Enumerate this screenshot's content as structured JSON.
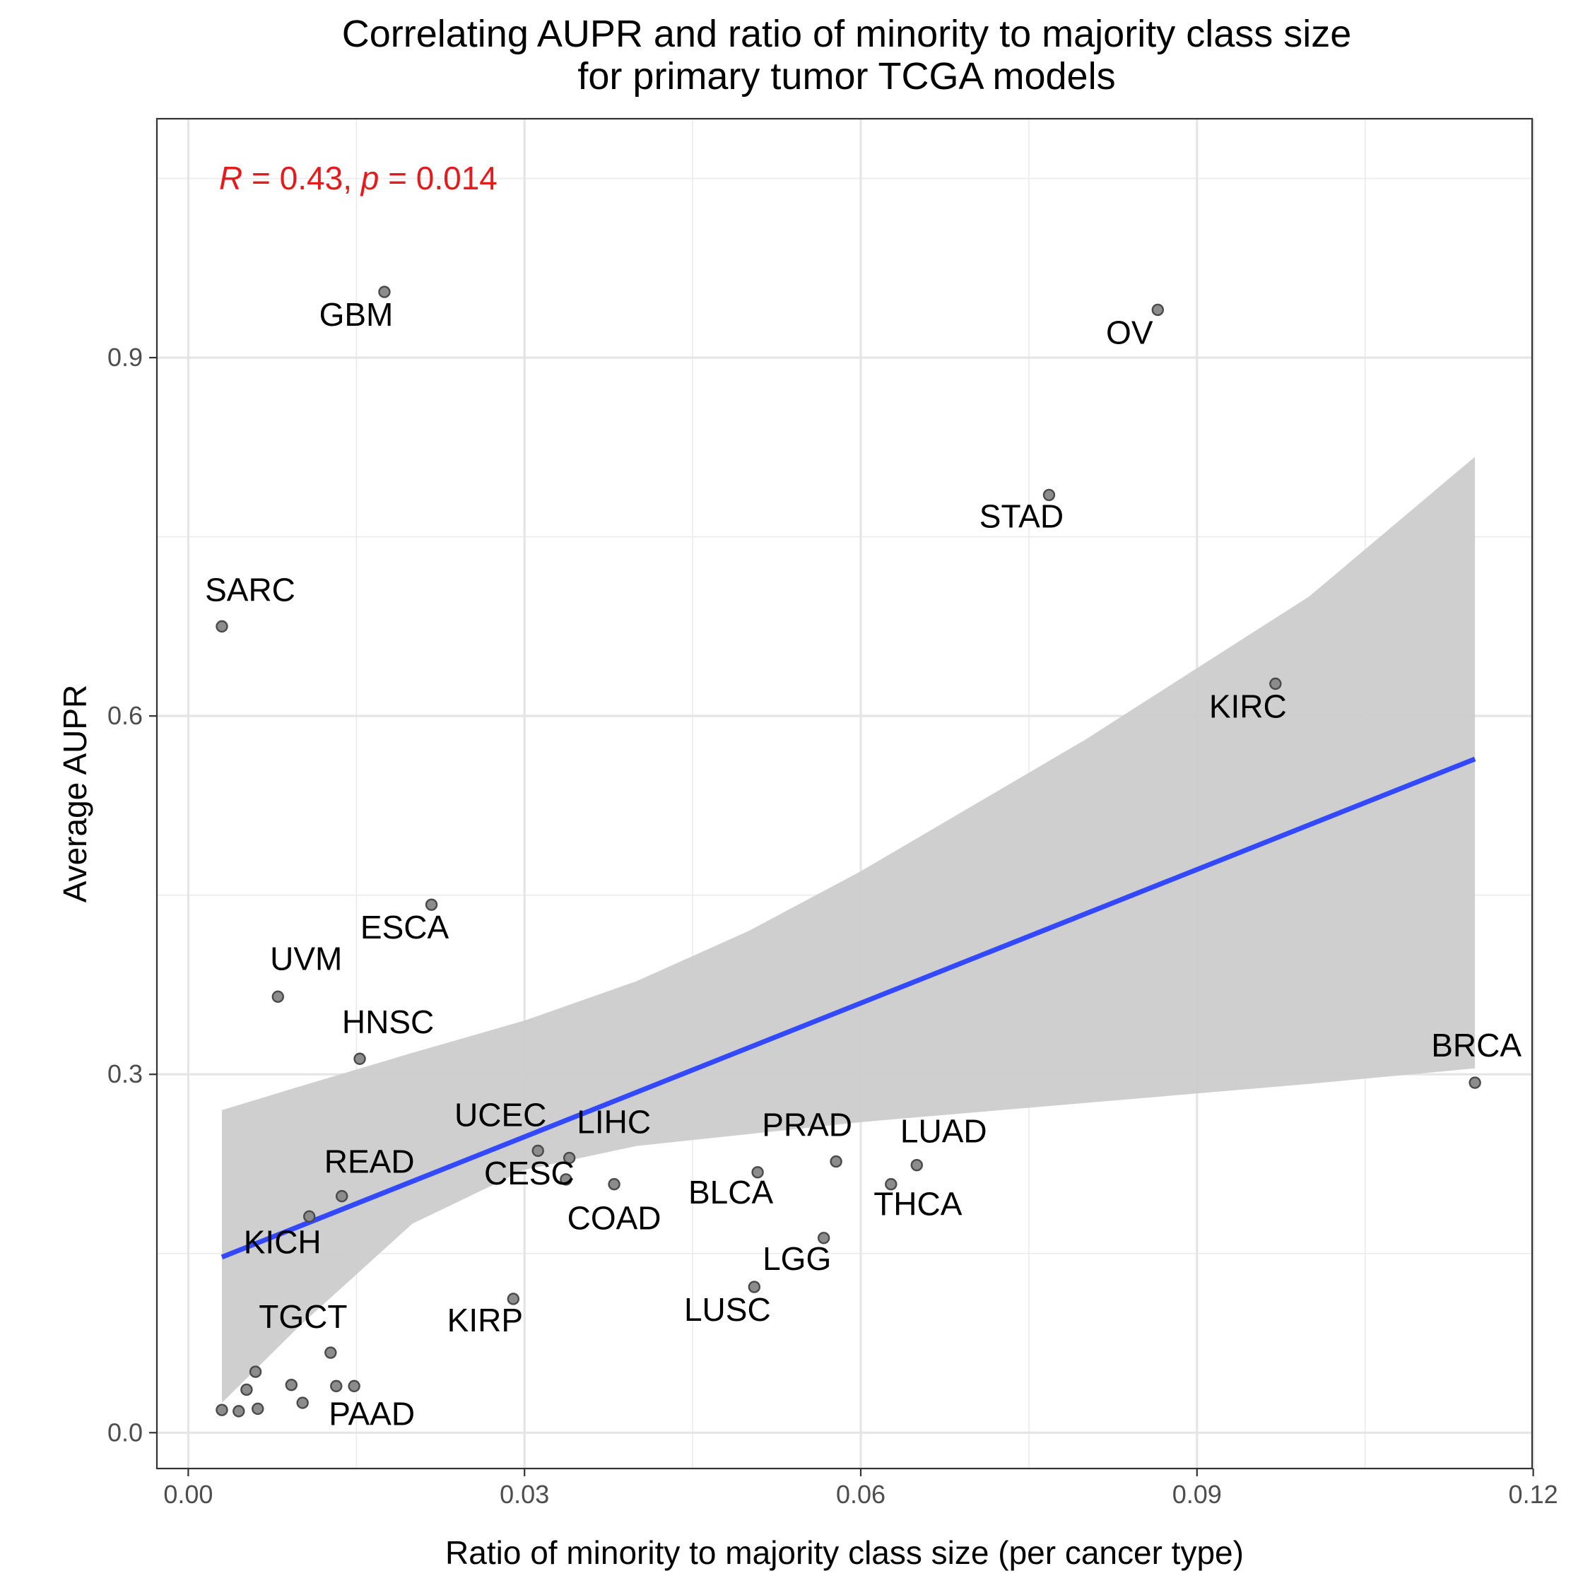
{
  "chart_data": {
    "type": "scatter",
    "title_lines": [
      "Correlating AUPR and ratio of minority to majority class size",
      "for primary tumor TCGA models"
    ],
    "xlabel": "Ratio of minority to majority class size (per cancer type)",
    "ylabel": "Average AUPR",
    "xlim": [
      -0.0028,
      0.1199
    ],
    "ylim": [
      -0.03,
      1.1
    ],
    "x_ticks": [
      0.0,
      0.03,
      0.06,
      0.09,
      0.12
    ],
    "x_tick_labels": [
      "0.00",
      "0.03",
      "0.06",
      "0.09",
      "0.12"
    ],
    "y_ticks": [
      0.0,
      0.3,
      0.6,
      0.9
    ],
    "y_tick_labels": [
      "0.0",
      "0.3",
      "0.6",
      "0.9"
    ],
    "grid": true,
    "annotation": {
      "r_symbol": "R",
      "r_text": " = 0.43, ",
      "p_symbol": "p",
      "p_text": " = 0.014"
    },
    "points": [
      {
        "x": 0.0175,
        "y": 0.955,
        "label": "GBM"
      },
      {
        "x": 0.0865,
        "y": 0.94,
        "label": "OV"
      },
      {
        "x": 0.0768,
        "y": 0.785,
        "label": "STAD"
      },
      {
        "x": 0.003,
        "y": 0.675,
        "label": "SARC"
      },
      {
        "x": 0.097,
        "y": 0.627,
        "label": "KIRC"
      },
      {
        "x": 0.0217,
        "y": 0.442,
        "label": "ESCA"
      },
      {
        "x": 0.008,
        "y": 0.365,
        "label": "UVM"
      },
      {
        "x": 0.0153,
        "y": 0.313,
        "label": "HNSC"
      },
      {
        "x": 0.1148,
        "y": 0.293,
        "label": "BRCA"
      },
      {
        "x": 0.0312,
        "y": 0.236,
        "label": "UCEC"
      },
      {
        "x": 0.034,
        "y": 0.23,
        "label": "LIHC"
      },
      {
        "x": 0.0578,
        "y": 0.227,
        "label": "PRAD"
      },
      {
        "x": 0.065,
        "y": 0.224,
        "label": "LUAD"
      },
      {
        "x": 0.0508,
        "y": 0.218,
        "label": "BLCA"
      },
      {
        "x": 0.0337,
        "y": 0.212,
        "label": "CESC"
      },
      {
        "x": 0.038,
        "y": 0.208,
        "label": "COAD"
      },
      {
        "x": 0.0627,
        "y": 0.208,
        "label": "THCA"
      },
      {
        "x": 0.0137,
        "y": 0.198,
        "label": "READ"
      },
      {
        "x": 0.0108,
        "y": 0.181,
        "label": "KICH"
      },
      {
        "x": 0.0567,
        "y": 0.163,
        "label": "LGG"
      },
      {
        "x": 0.0505,
        "y": 0.122,
        "label": "LUSC"
      },
      {
        "x": 0.029,
        "y": 0.112,
        "label": "KIRP"
      },
      {
        "x": 0.0127,
        "y": 0.067,
        "label": "TGCT"
      },
      {
        "x": 0.0148,
        "y": 0.039,
        "label": "PAAD"
      },
      {
        "x": 0.006,
        "y": 0.051,
        "label": ""
      },
      {
        "x": 0.0052,
        "y": 0.036,
        "label": ""
      },
      {
        "x": 0.0092,
        "y": 0.04,
        "label": ""
      },
      {
        "x": 0.0132,
        "y": 0.039,
        "label": ""
      },
      {
        "x": 0.003,
        "y": 0.019,
        "label": ""
      },
      {
        "x": 0.0045,
        "y": 0.018,
        "label": ""
      },
      {
        "x": 0.0062,
        "y": 0.02,
        "label": ""
      },
      {
        "x": 0.0102,
        "y": 0.025,
        "label": ""
      }
    ],
    "fit": {
      "type": "linear",
      "color": "#3349ff",
      "x": [
        0.003,
        0.1148
      ],
      "y": [
        0.147,
        0.564
      ],
      "ci_color": "#cccccc",
      "ci": {
        "x": [
          0.003,
          0.01,
          0.02,
          0.03,
          0.04,
          0.05,
          0.06,
          0.07,
          0.08,
          0.09,
          0.1,
          0.1148
        ],
        "lower": [
          0.025,
          0.09,
          0.175,
          0.22,
          0.24,
          0.25,
          0.26,
          0.268,
          0.276,
          0.284,
          0.292,
          0.305
        ],
        "upper": [
          0.27,
          0.29,
          0.318,
          0.345,
          0.378,
          0.42,
          0.47,
          0.525,
          0.58,
          0.64,
          0.7,
          0.817
        ]
      }
    }
  }
}
